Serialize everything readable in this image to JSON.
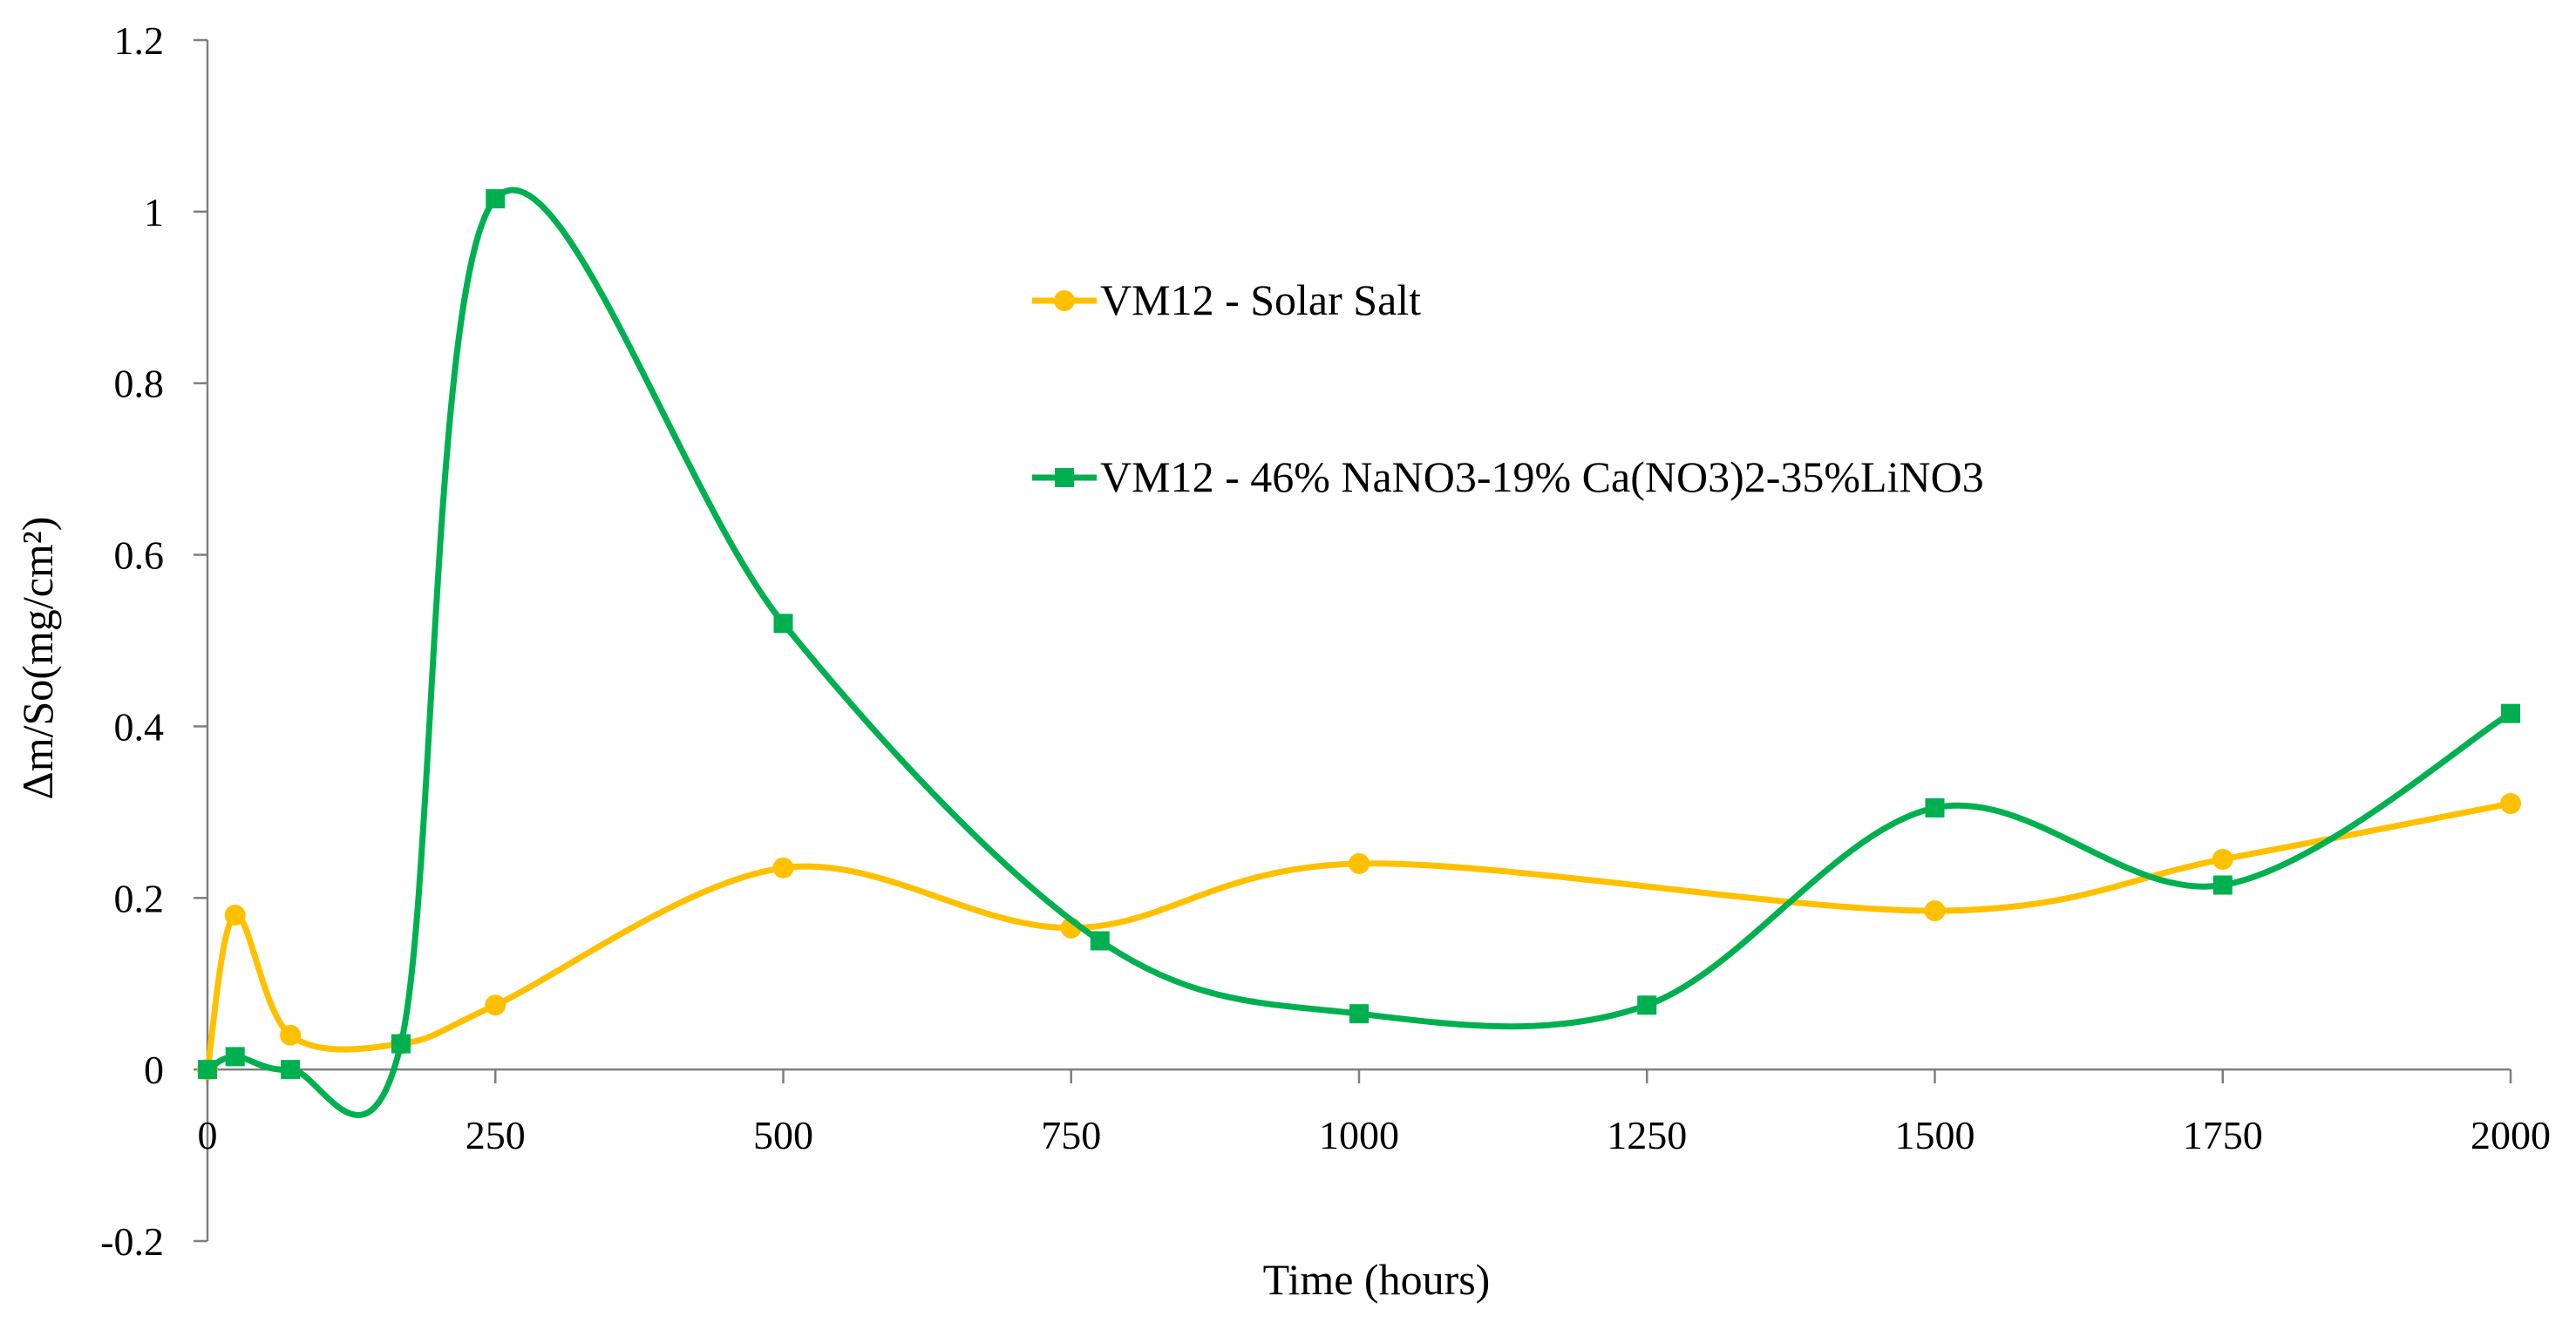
{
  "chart_data": {
    "type": "line",
    "title": "",
    "xlabel": "Time (hours)",
    "ylabel": "Δm/So(mg/cm²)",
    "xlim": [
      0,
      2000
    ],
    "ylim": [
      -0.2,
      1.2
    ],
    "xticks": [
      0,
      250,
      500,
      750,
      1000,
      1250,
      1500,
      1750,
      2000
    ],
    "yticks": [
      -0.2,
      0,
      0.2,
      0.4,
      0.6,
      0.8,
      1,
      1.2
    ],
    "xtick_labels": [
      "0",
      "250",
      "500",
      "750",
      "1000",
      "1250",
      "1500",
      "1750",
      "2000"
    ],
    "ytick_labels": [
      "-0.2",
      "0",
      "0.2",
      "0.4",
      "0.6",
      "0.8",
      "1",
      "1.2"
    ],
    "grid": false,
    "legend_position": "upper-middle",
    "series": [
      {
        "name": "VM12 - Solar Salt",
        "color": "#FFC000",
        "marker": "circle",
        "x": [
          0,
          24,
          72,
          168,
          250,
          500,
          750,
          1000,
          1500,
          1750,
          2000
        ],
        "y": [
          0,
          0.18,
          0.04,
          0.03,
          0.075,
          0.235,
          0.165,
          0.24,
          0.185,
          0.245,
          0.31
        ]
      },
      {
        "name": "VM12 - 46% NaNO3-19% Ca(NO3)2-35%LiNO3",
        "color": "#00B050",
        "marker": "square",
        "x": [
          0,
          24,
          72,
          168,
          250,
          500,
          775,
          1000,
          1250,
          1500,
          1750,
          2000
        ],
        "y": [
          0,
          0.015,
          0,
          0.03,
          1.015,
          0.52,
          0.15,
          0.065,
          0.075,
          0.305,
          0.215,
          0.415
        ]
      }
    ]
  }
}
